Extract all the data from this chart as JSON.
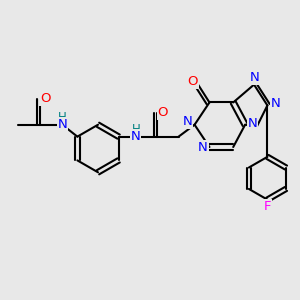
{
  "background_color": "#e8e8e8",
  "bond_color": "#000000",
  "atom_colors": {
    "N": "#0000ff",
    "O": "#ff0000",
    "F": "#ff00ff",
    "H": "#008080",
    "C": "#000000"
  },
  "font_size": 9.5,
  "fig_size": [
    3.0,
    3.0
  ],
  "dpi": 100
}
